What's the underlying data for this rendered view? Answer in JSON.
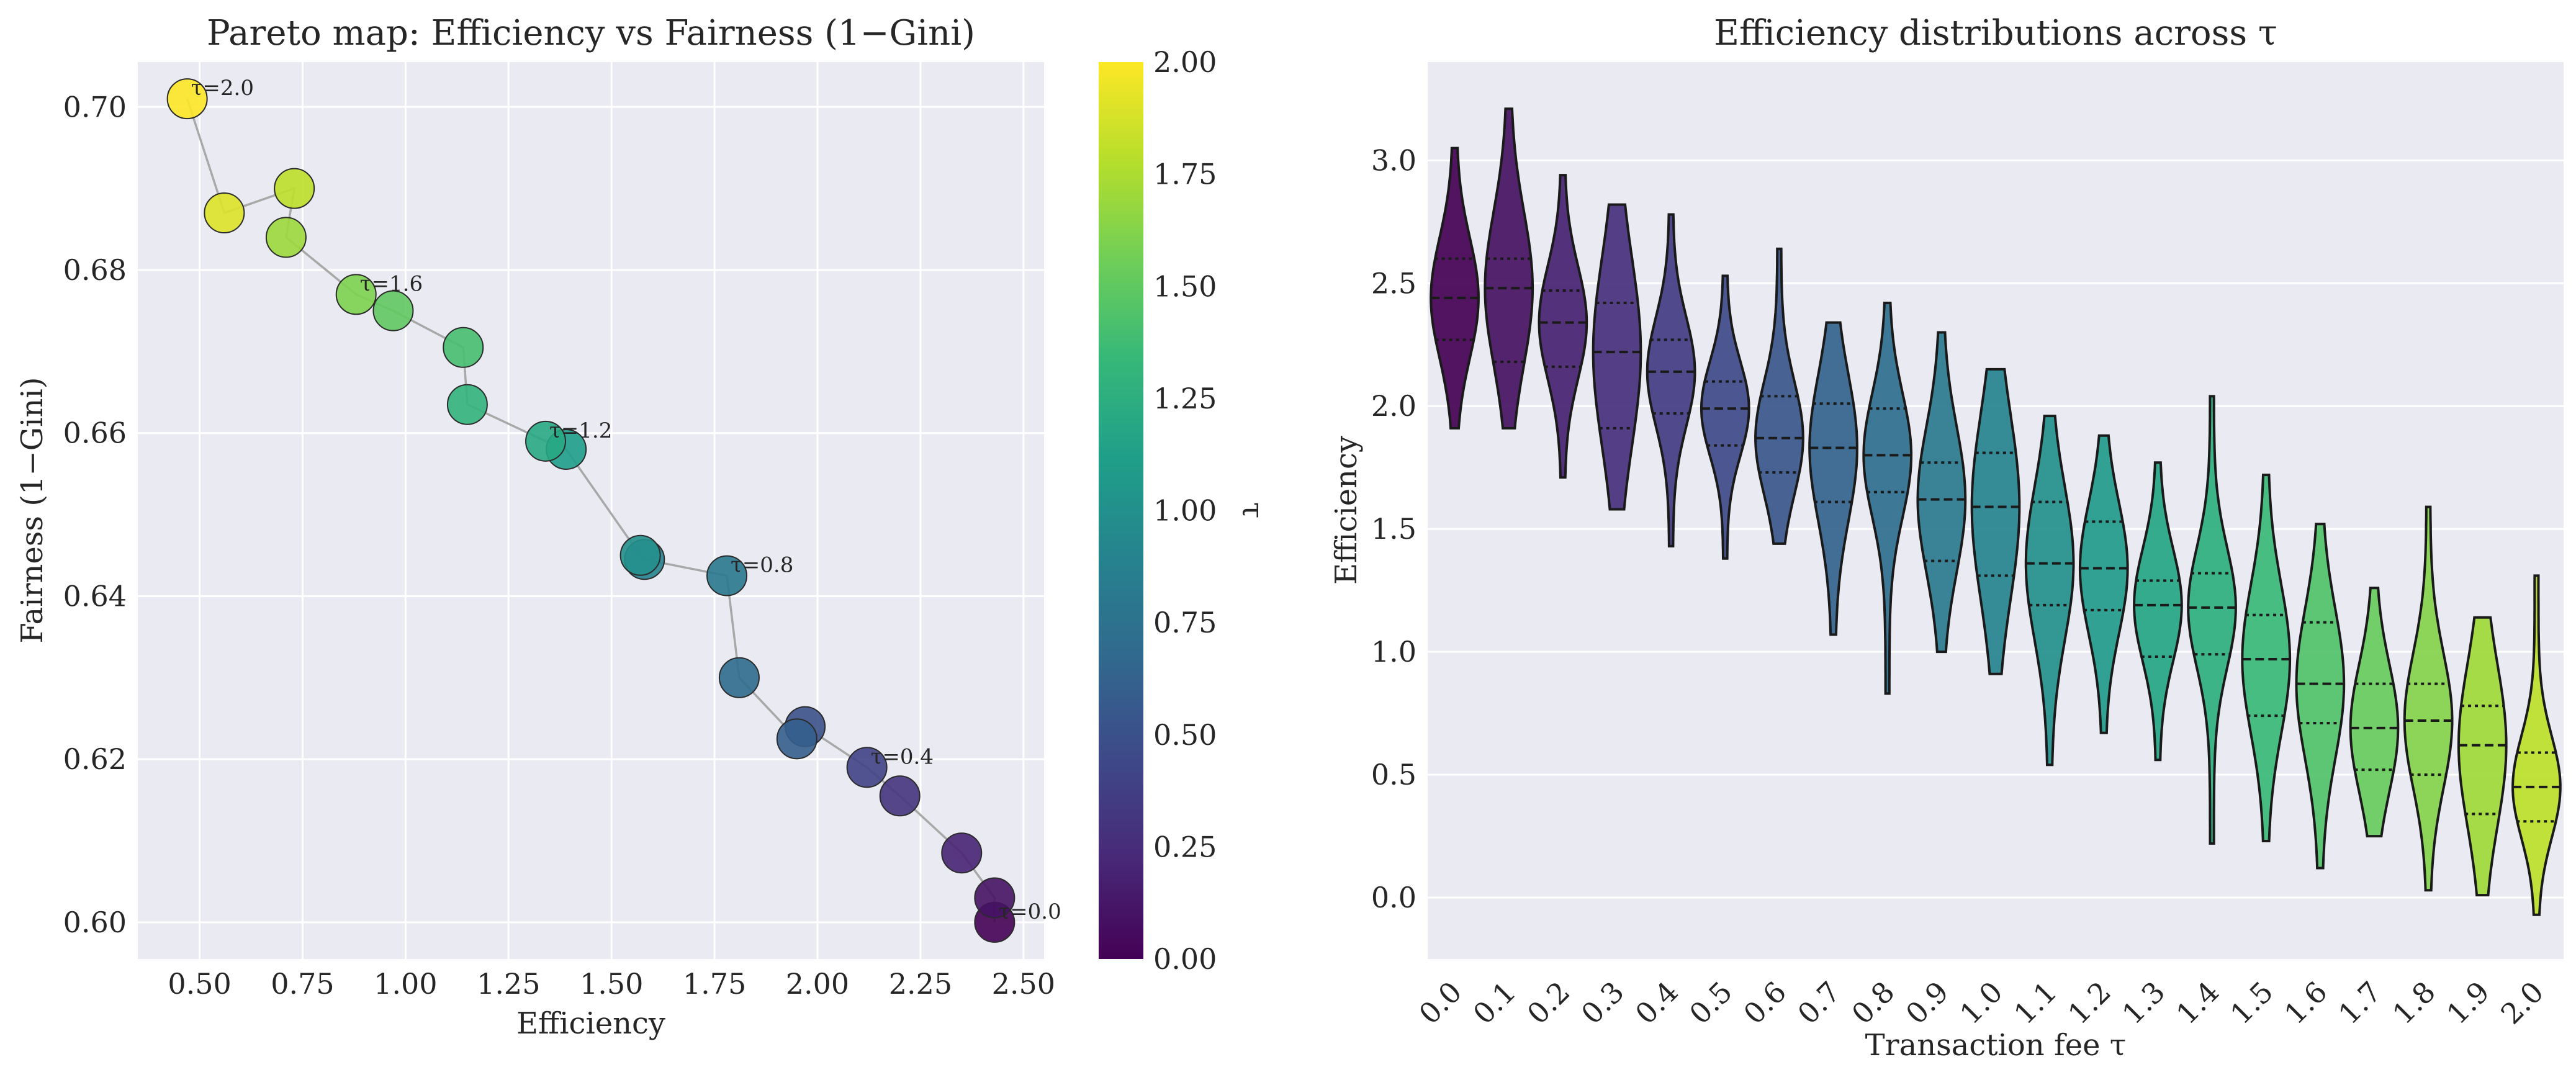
{
  "chart_data": [
    {
      "type": "scatter",
      "title": "Pareto map: Efficiency vs Fairness (1−Gini)",
      "xlabel": "Efficiency",
      "ylabel": "Fairness (1−Gini)",
      "xlim": [
        0.35,
        2.55
      ],
      "ylim": [
        0.5955,
        0.7055
      ],
      "xticks": [
        "0.50",
        "0.75",
        "1.00",
        "1.25",
        "1.50",
        "1.75",
        "2.00",
        "2.25",
        "2.50"
      ],
      "yticks": [
        "0.60",
        "0.62",
        "0.64",
        "0.66",
        "0.68",
        "0.70"
      ],
      "grid": true,
      "colorbar": {
        "label": "τ",
        "range": [
          0.0,
          2.0
        ],
        "ticks": [
          "0.00",
          "0.25",
          "0.50",
          "0.75",
          "1.00",
          "1.25",
          "1.50",
          "1.75",
          "2.00"
        ],
        "colormap": "viridis"
      },
      "points": [
        {
          "tau": 0.0,
          "x": 2.43,
          "y": 0.6
        },
        {
          "tau": 0.1,
          "x": 2.43,
          "y": 0.603
        },
        {
          "tau": 0.2,
          "x": 2.35,
          "y": 0.6085
        },
        {
          "tau": 0.3,
          "x": 2.2,
          "y": 0.6155
        },
        {
          "tau": 0.4,
          "x": 2.12,
          "y": 0.619
        },
        {
          "tau": 0.5,
          "x": 1.97,
          "y": 0.624
        },
        {
          "tau": 0.6,
          "x": 1.95,
          "y": 0.6225
        },
        {
          "tau": 0.7,
          "x": 1.81,
          "y": 0.63
        },
        {
          "tau": 0.8,
          "x": 1.78,
          "y": 0.6425
        },
        {
          "tau": 0.9,
          "x": 1.58,
          "y": 0.6445
        },
        {
          "tau": 1.0,
          "x": 1.57,
          "y": 0.645
        },
        {
          "tau": 1.1,
          "x": 1.39,
          "y": 0.658
        },
        {
          "tau": 1.2,
          "x": 1.34,
          "y": 0.659
        },
        {
          "tau": 1.3,
          "x": 1.15,
          "y": 0.6635
        },
        {
          "tau": 1.4,
          "x": 1.14,
          "y": 0.6705
        },
        {
          "tau": 1.5,
          "x": 0.97,
          "y": 0.675
        },
        {
          "tau": 1.6,
          "x": 0.88,
          "y": 0.677
        },
        {
          "tau": 1.7,
          "x": 0.71,
          "y": 0.684
        },
        {
          "tau": 1.8,
          "x": 0.73,
          "y": 0.69
        },
        {
          "tau": 1.9,
          "x": 0.56,
          "y": 0.687
        },
        {
          "tau": 2.0,
          "x": 0.47,
          "y": 0.701
        }
      ],
      "annotations": [
        {
          "text": "τ=0.0",
          "x": 2.43,
          "y": 0.6
        },
        {
          "text": "τ=0.4",
          "x": 2.12,
          "y": 0.619
        },
        {
          "text": "τ=0.8",
          "x": 1.78,
          "y": 0.6425
        },
        {
          "text": "τ=1.2",
          "x": 1.34,
          "y": 0.659
        },
        {
          "text": "τ=1.6",
          "x": 0.88,
          "y": 0.677
        },
        {
          "text": "τ=2.0",
          "x": 0.47,
          "y": 0.701
        }
      ]
    },
    {
      "type": "violin",
      "title": "Efficiency distributions across τ",
      "xlabel": "Transaction fee τ",
      "ylabel": "Efficiency",
      "ylim": [
        -0.25,
        3.4
      ],
      "yticks": [
        "0.0",
        "0.5",
        "1.0",
        "1.5",
        "2.0",
        "2.5",
        "3.0"
      ],
      "grid": true,
      "categories": [
        "0.0",
        "0.1",
        "0.2",
        "0.3",
        "0.4",
        "0.5",
        "0.6",
        "0.7",
        "0.8",
        "0.9",
        "1.0",
        "1.1",
        "1.2",
        "1.3",
        "1.4",
        "1.5",
        "1.6",
        "1.7",
        "1.8",
        "1.9",
        "2.0"
      ],
      "violins": [
        {
          "tau": "0.0",
          "min": 1.91,
          "q1": 2.27,
          "median": 2.44,
          "q3": 2.6,
          "max": 3.05
        },
        {
          "tau": "0.1",
          "min": 1.91,
          "q1": 2.18,
          "median": 2.48,
          "q3": 2.6,
          "max": 3.21
        },
        {
          "tau": "0.2",
          "min": 1.71,
          "q1": 2.16,
          "median": 2.34,
          "q3": 2.47,
          "max": 2.94
        },
        {
          "tau": "0.3",
          "min": 1.58,
          "q1": 1.91,
          "median": 2.22,
          "q3": 2.42,
          "max": 2.82
        },
        {
          "tau": "0.4",
          "min": 1.43,
          "q1": 1.97,
          "median": 2.14,
          "q3": 2.27,
          "max": 2.78
        },
        {
          "tau": "0.5",
          "min": 1.38,
          "q1": 1.84,
          "median": 1.99,
          "q3": 2.1,
          "max": 2.53
        },
        {
          "tau": "0.6",
          "min": 1.44,
          "q1": 1.73,
          "median": 1.87,
          "q3": 2.04,
          "max": 2.64
        },
        {
          "tau": "0.7",
          "min": 1.07,
          "q1": 1.61,
          "median": 1.83,
          "q3": 2.01,
          "max": 2.34
        },
        {
          "tau": "0.8",
          "min": 0.83,
          "q1": 1.65,
          "median": 1.8,
          "q3": 1.99,
          "max": 2.42
        },
        {
          "tau": "0.9",
          "min": 1.0,
          "q1": 1.37,
          "median": 1.62,
          "q3": 1.77,
          "max": 2.3
        },
        {
          "tau": "1.0",
          "min": 0.91,
          "q1": 1.31,
          "median": 1.59,
          "q3": 1.81,
          "max": 2.15
        },
        {
          "tau": "1.1",
          "min": 0.54,
          "q1": 1.19,
          "median": 1.36,
          "q3": 1.61,
          "max": 1.96
        },
        {
          "tau": "1.2",
          "min": 0.67,
          "q1": 1.17,
          "median": 1.34,
          "q3": 1.53,
          "max": 1.88
        },
        {
          "tau": "1.3",
          "min": 0.56,
          "q1": 0.98,
          "median": 1.19,
          "q3": 1.29,
          "max": 1.77
        },
        {
          "tau": "1.4",
          "min": 0.22,
          "q1": 0.99,
          "median": 1.18,
          "q3": 1.32,
          "max": 2.04
        },
        {
          "tau": "1.5",
          "min": 0.23,
          "q1": 0.74,
          "median": 0.97,
          "q3": 1.15,
          "max": 1.72
        },
        {
          "tau": "1.6",
          "min": 0.12,
          "q1": 0.71,
          "median": 0.87,
          "q3": 1.12,
          "max": 1.52
        },
        {
          "tau": "1.7",
          "min": 0.25,
          "q1": 0.52,
          "median": 0.69,
          "q3": 0.87,
          "max": 1.26
        },
        {
          "tau": "1.8",
          "min": 0.03,
          "q1": 0.5,
          "median": 0.72,
          "q3": 0.87,
          "max": 1.59
        },
        {
          "tau": "1.9",
          "min": 0.01,
          "q1": 0.34,
          "median": 0.62,
          "q3": 0.78,
          "max": 1.14
        },
        {
          "tau": "2.0",
          "min": -0.07,
          "q1": 0.31,
          "median": 0.45,
          "q3": 0.59,
          "max": 1.31
        }
      ]
    }
  ]
}
